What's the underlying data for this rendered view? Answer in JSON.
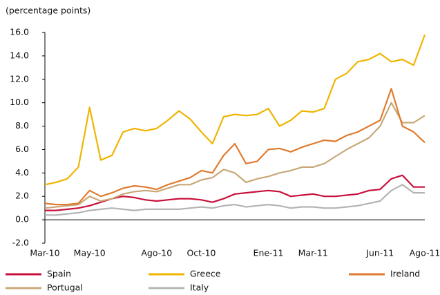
{
  "chart_data": {
    "type": "line",
    "title": "(percentage points)",
    "categories": [
      "Mar-10",
      null,
      null,
      null,
      "May-10",
      null,
      null,
      null,
      null,
      null,
      "Ago-10",
      null,
      null,
      null,
      "Oct-10",
      null,
      null,
      null,
      null,
      null,
      "Ene-11",
      null,
      null,
      null,
      "Mar-11",
      null,
      null,
      null,
      null,
      null,
      "Jun-11",
      null,
      null,
      null,
      "Ago-11"
    ],
    "series": [
      {
        "name": "Spain",
        "color": "#c8103c",
        "values": [
          0.8,
          0.8,
          0.9,
          1.0,
          1.2,
          1.5,
          1.8,
          2.0,
          1.9,
          1.7,
          1.6,
          1.7,
          1.8,
          1.8,
          1.7,
          1.5,
          1.8,
          2.2,
          2.3,
          2.4,
          2.5,
          2.4,
          2.0,
          2.1,
          2.2,
          2.0,
          2.0,
          2.1,
          2.2,
          2.5,
          2.6,
          3.5,
          3.8,
          2.8,
          2.8
        ]
      },
      {
        "name": "Greece",
        "color": "#f0b400",
        "values": [
          3.0,
          3.2,
          3.5,
          4.5,
          9.6,
          5.1,
          5.5,
          7.5,
          7.8,
          7.6,
          7.8,
          8.5,
          9.3,
          8.6,
          7.5,
          6.5,
          8.8,
          9.0,
          8.9,
          9.0,
          9.5,
          8.0,
          8.5,
          9.3,
          9.2,
          9.5,
          12.0,
          12.5,
          13.5,
          13.7,
          14.2,
          13.5,
          13.7,
          13.2,
          15.8
        ]
      },
      {
        "name": "Ireland",
        "color": "#e07a2e",
        "values": [
          1.4,
          1.3,
          1.3,
          1.4,
          2.5,
          2.0,
          2.3,
          2.7,
          2.9,
          2.8,
          2.6,
          3.0,
          3.3,
          3.6,
          4.2,
          4.0,
          5.5,
          6.5,
          4.8,
          5.0,
          6.0,
          6.1,
          5.8,
          6.2,
          6.5,
          6.8,
          6.7,
          7.2,
          7.5,
          8.0,
          8.5,
          11.2,
          8.0,
          7.5,
          6.6
        ]
      },
      {
        "name": "Portugal",
        "color": "#c8a878",
        "values": [
          1.0,
          1.1,
          1.2,
          1.3,
          2.0,
          1.6,
          1.8,
          2.2,
          2.4,
          2.5,
          2.4,
          2.7,
          3.0,
          3.0,
          3.4,
          3.6,
          4.3,
          4.0,
          3.2,
          3.5,
          3.7,
          4.0,
          4.2,
          4.5,
          4.5,
          4.8,
          5.4,
          6.0,
          6.5,
          7.0,
          8.0,
          10.0,
          8.3,
          8.3,
          8.9
        ]
      },
      {
        "name": "Italy",
        "color": "#b4b4b4",
        "values": [
          0.4,
          0.4,
          0.5,
          0.6,
          0.8,
          0.9,
          1.0,
          0.9,
          0.8,
          0.9,
          0.9,
          0.9,
          0.9,
          1.0,
          1.1,
          1.0,
          1.2,
          1.3,
          1.1,
          1.2,
          1.3,
          1.2,
          1.0,
          1.1,
          1.1,
          1.0,
          1.0,
          1.1,
          1.2,
          1.4,
          1.6,
          2.5,
          3.0,
          2.3,
          2.3
        ]
      }
    ],
    "ylim": [
      -2,
      16
    ],
    "yticks": [
      {
        "value": -2,
        "label": "-2.0"
      },
      {
        "value": 0,
        "label": "0.0"
      },
      {
        "value": 2,
        "label": "2.0"
      },
      {
        "value": 4,
        "label": "4.0"
      },
      {
        "value": 6,
        "label": "6.0"
      },
      {
        "value": 8,
        "label": "8.0"
      },
      {
        "value": 10,
        "label": "10.0"
      },
      {
        "value": 12,
        "label": "12.0"
      },
      {
        "value": 14,
        "label": "14.0"
      },
      {
        "value": 16,
        "label": "16.0"
      }
    ],
    "grid": false
  }
}
